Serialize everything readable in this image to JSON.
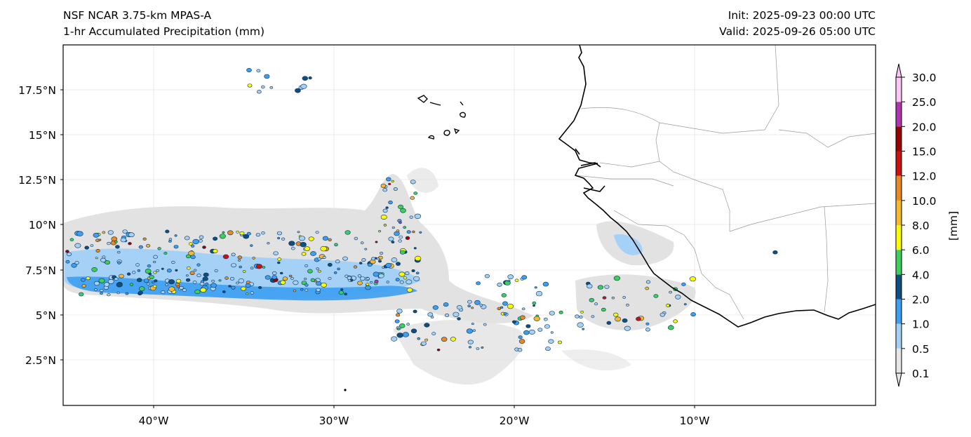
{
  "header": {
    "model": "NSF NCAR 3.75-km MPAS-A",
    "field": "1-hr Accumulated Precipitation (mm)",
    "init": "Init: 2025-09-23 00:00 UTC",
    "valid": "Valid: 2025-09-26 05:00 UTC"
  },
  "map": {
    "lat_ticks": [
      "17.5°N",
      "15°N",
      "12.5°N",
      "10°N",
      "7.5°N",
      "5°N",
      "2.5°N"
    ],
    "lon_ticks": [
      "40°W",
      "30°W",
      "20°W",
      "10°W"
    ],
    "gridlines": true,
    "coastline_color": "#000000",
    "border_color": "#999999"
  },
  "colorbar": {
    "label": "[mm]",
    "levels": [
      "0.1",
      "0.5",
      "1.0",
      "2.0",
      "4.0",
      "6.0",
      "8.0",
      "10.0",
      "12.0",
      "15.0",
      "20.0",
      "25.0",
      "30.0"
    ],
    "colors": [
      "#e6e6e6",
      "#a5d1f7",
      "#3d9ff2",
      "#0c4f80",
      "#3ccf5c",
      "#fcfc00",
      "#f5b930",
      "#e88a22",
      "#cc1111",
      "#990000",
      "#b034b0",
      "#ffc6f5"
    ],
    "extend": "both"
  }
}
